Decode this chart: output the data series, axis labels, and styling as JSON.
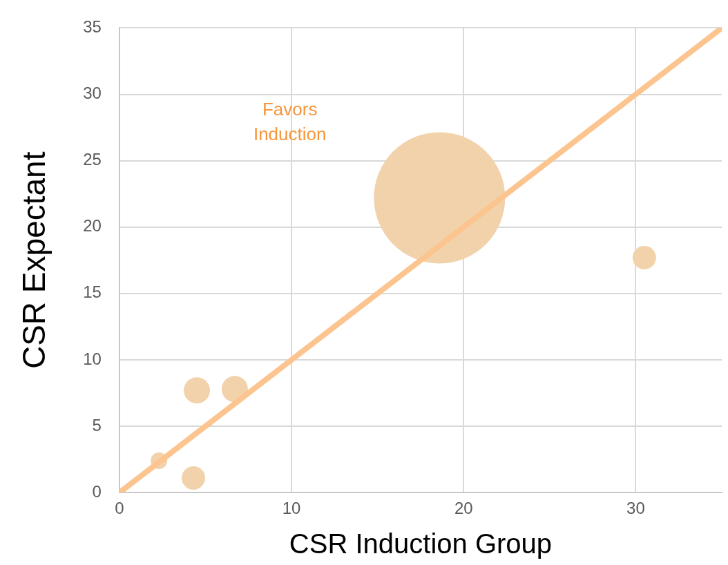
{
  "chart_data": {
    "type": "bubble",
    "xlabel": "CSR Induction Group",
    "ylabel": "CSR Expectant",
    "annotations": [
      "Favors\nInduction"
    ],
    "series": [
      {
        "type": "bubble",
        "color": "#f2d2aa",
        "x": [
          18.6,
          30.5,
          6.7,
          4.5,
          2.3,
          4.3
        ],
        "values": [
          22.2,
          17.7,
          7.8,
          7.7,
          2.4,
          1.1
        ],
        "sizes": [
          1,
          0.032,
          0.04,
          0.04,
          0.016,
          0.032
        ]
      },
      {
        "type": "line",
        "color": "#fcc48e",
        "x": [
          0,
          35
        ],
        "values": [
          0,
          35
        ],
        "marker": "none"
      }
    ],
    "xlim": [
      0,
      35
    ],
    "xticks": [
      0,
      10,
      20,
      30
    ],
    "ylim": [
      0,
      35
    ],
    "yticks": [
      0,
      5,
      10,
      15,
      20,
      25,
      30,
      35
    ],
    "grid": true
  }
}
